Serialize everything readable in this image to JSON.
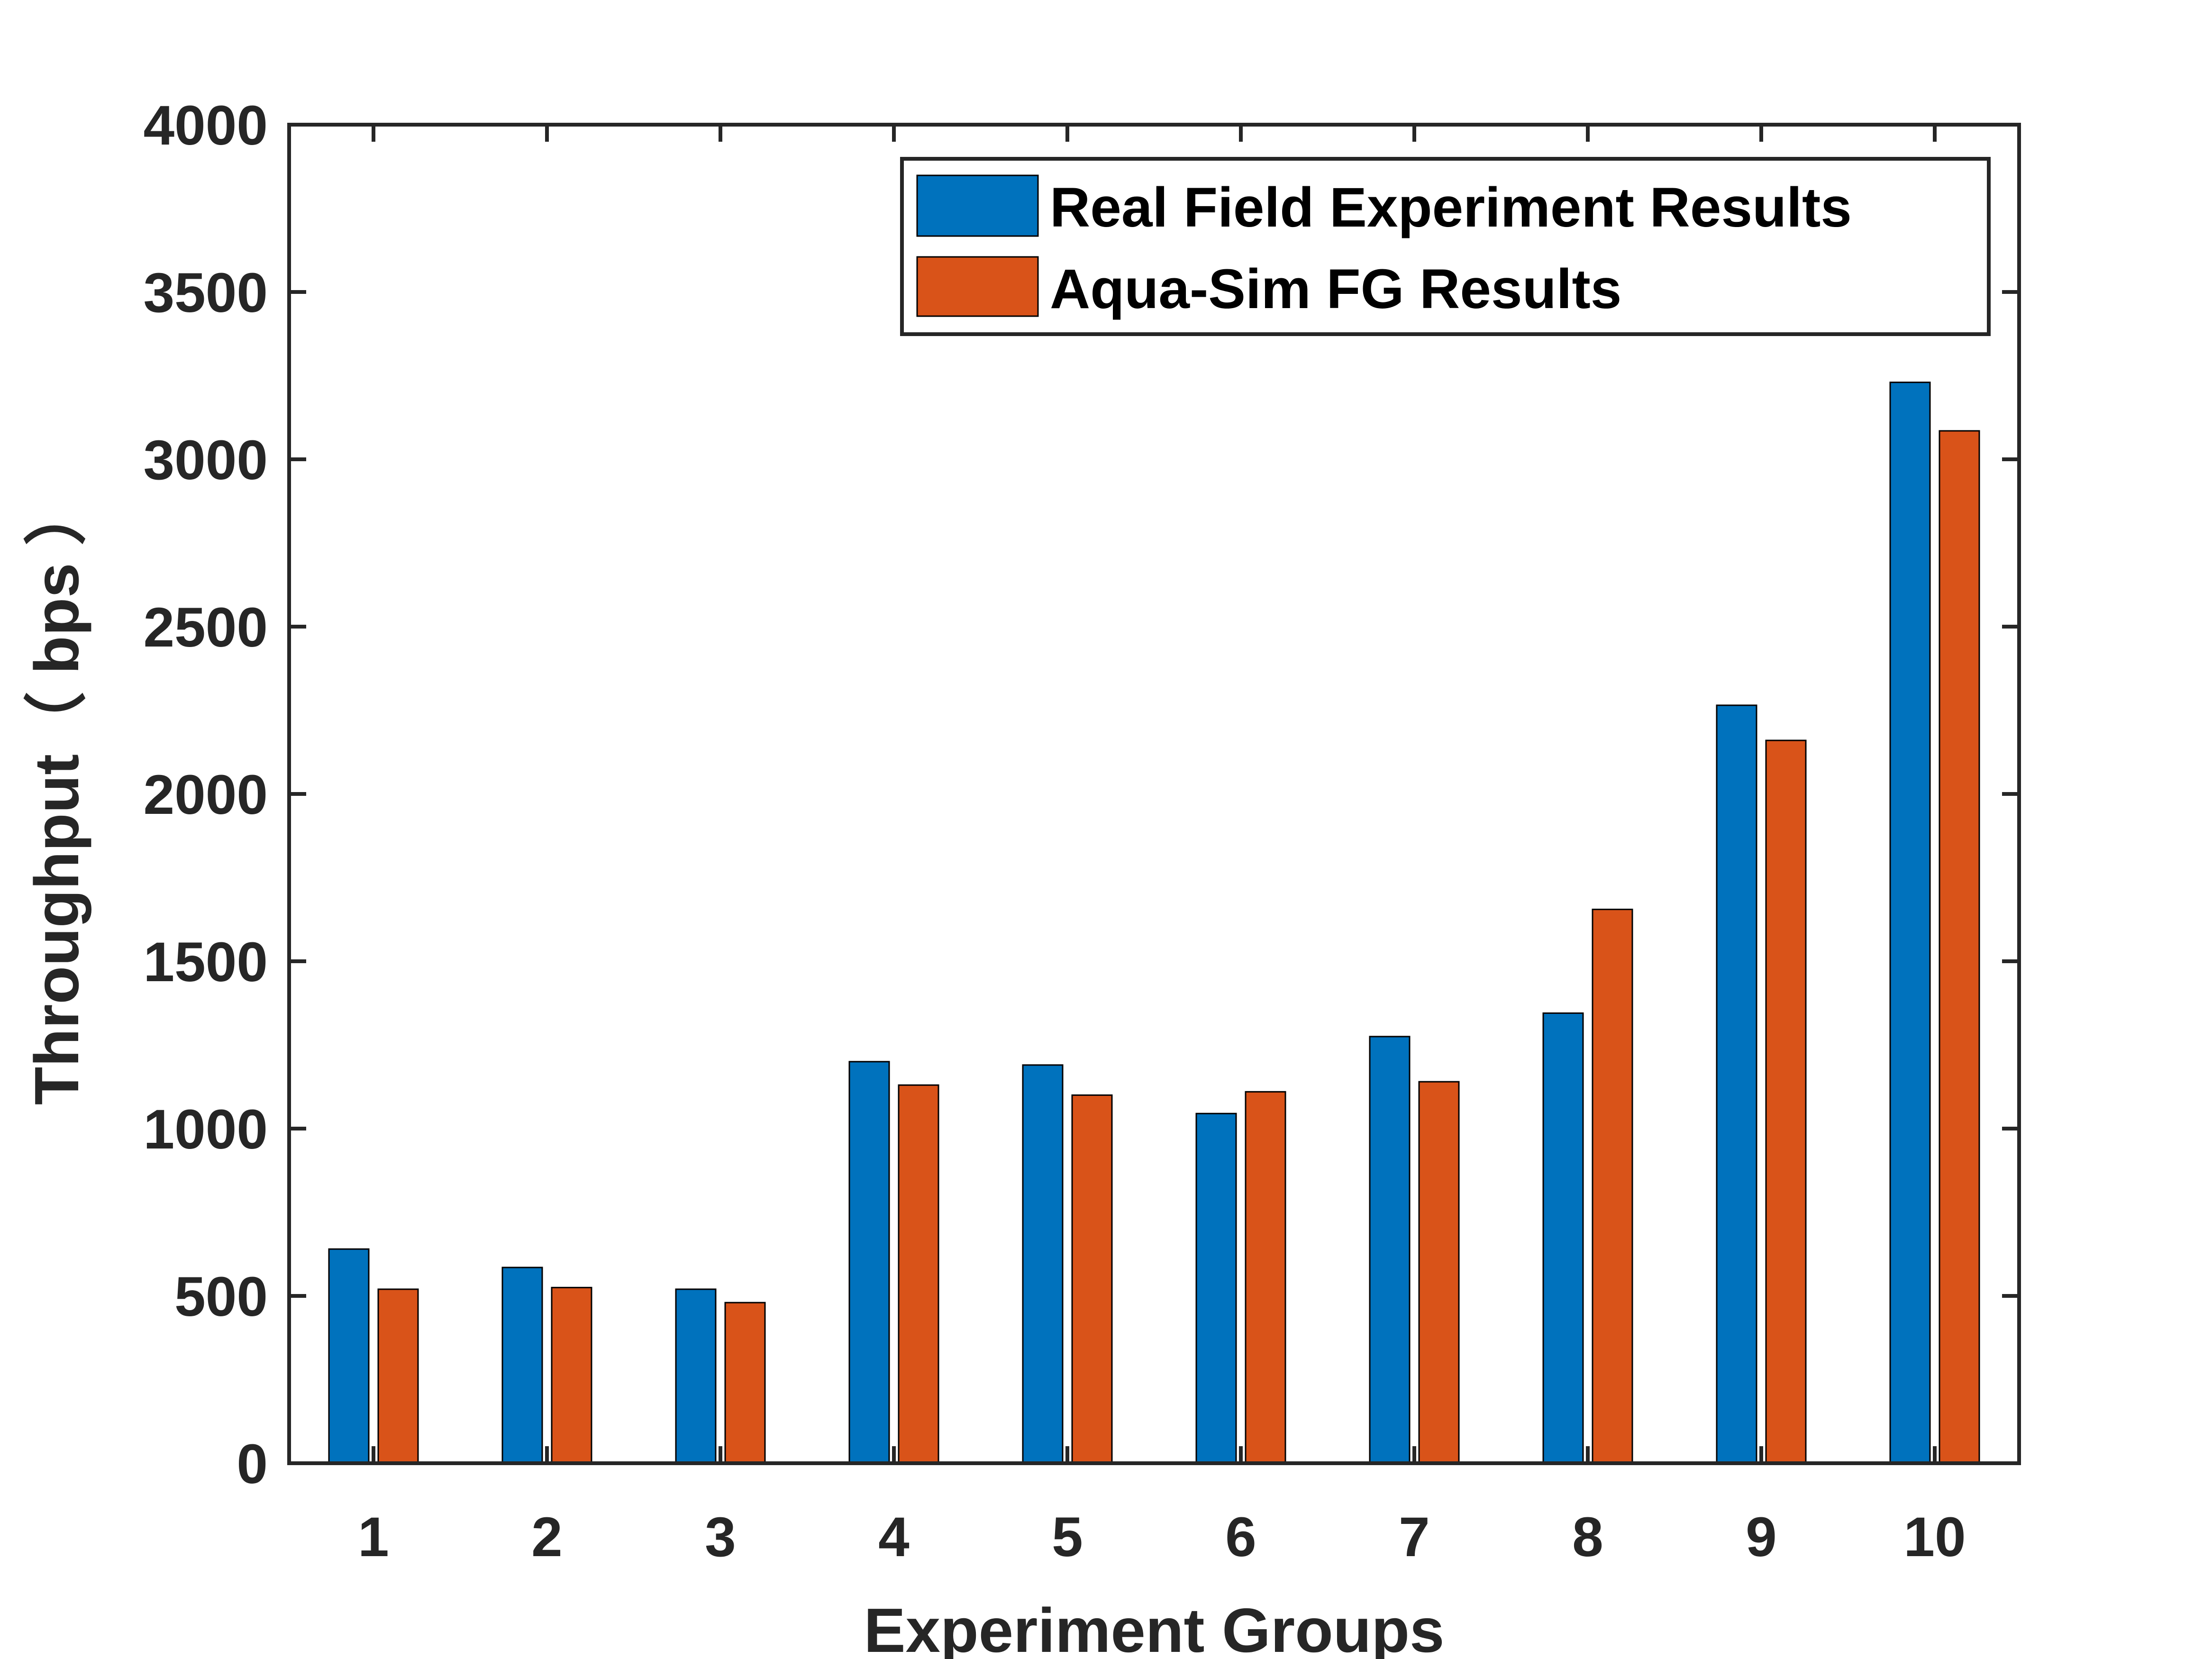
{
  "chart_data": {
    "type": "bar",
    "title": "",
    "xlabel": "Experiment Groups",
    "ylabel": "Throughput（ bps ）",
    "categories": [
      "1",
      "2",
      "3",
      "4",
      "5",
      "6",
      "7",
      "8",
      "9",
      "10"
    ],
    "ylim": [
      0,
      4000
    ],
    "yticks": [
      0,
      500,
      1000,
      1500,
      2000,
      2500,
      3000,
      3500,
      4000
    ],
    "ytick_labels": [
      "0",
      "500",
      "1000",
      "1500",
      "2000",
      "2500",
      "3000",
      "3500",
      "4000"
    ],
    "grid": false,
    "legend_position": "top-right",
    "series": [
      {
        "name": "Real Field Experiment Results",
        "color": "#0072BD",
        "values": [
          640,
          585,
          520,
          1200,
          1190,
          1045,
          1275,
          1345,
          2265,
          3230
        ]
      },
      {
        "name": "Aqua-Sim FG Results",
        "color": "#D95319",
        "values": [
          520,
          525,
          480,
          1130,
          1100,
          1110,
          1140,
          1655,
          2160,
          3085
        ]
      }
    ]
  }
}
